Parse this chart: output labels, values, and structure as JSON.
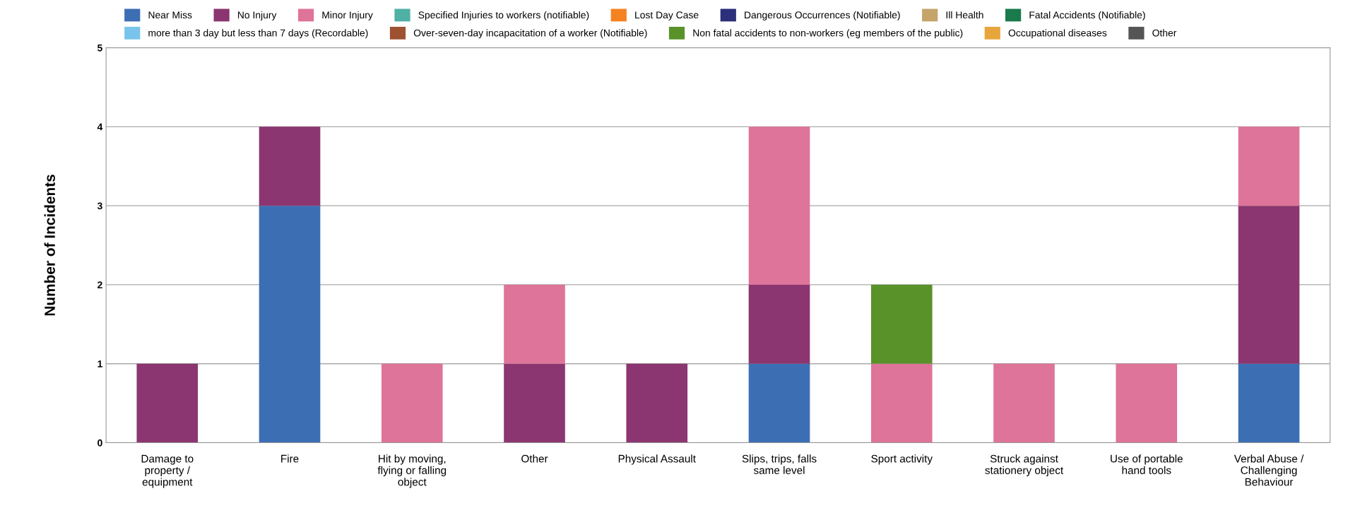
{
  "chart_data": {
    "type": "bar",
    "stacked": true,
    "ylabel": "Number of Incidents",
    "categories": [
      "Damage to property / equipment",
      "Fire",
      "Hit by moving, flying or falling object",
      "Other",
      "Physical Assault",
      "Slips, trips, falls same level",
      "Sport activity",
      "Struck against stationery object",
      "Use of portable hand tools",
      "Verbal Abuse / Challenging Behaviour"
    ],
    "ylim": [
      0,
      5
    ],
    "yticks": [
      0,
      1,
      2,
      3,
      4,
      5
    ],
    "grid": "y",
    "legend": "top",
    "series": [
      {
        "name": "Near Miss",
        "color": "#3c6eb4",
        "values": [
          0,
          3,
          0,
          0,
          0,
          1,
          0,
          0,
          0,
          1
        ]
      },
      {
        "name": "No Injury",
        "color": "#8b3670",
        "values": [
          1,
          1,
          0,
          1,
          1,
          1,
          0,
          0,
          0,
          2
        ]
      },
      {
        "name": "Minor Injury",
        "color": "#de7499",
        "values": [
          0,
          0,
          1,
          1,
          0,
          2,
          1,
          1,
          1,
          1
        ]
      },
      {
        "name": "Specified Injuries to workers (notifiable)",
        "color": "#4fb0a5",
        "values": [
          0,
          0,
          0,
          0,
          0,
          0,
          0,
          0,
          0,
          0
        ]
      },
      {
        "name": "Lost Day Case",
        "color": "#f58220",
        "values": [
          0,
          0,
          0,
          0,
          0,
          0,
          0,
          0,
          0,
          0
        ]
      },
      {
        "name": "Dangerous Occurrences (Notifiable)",
        "color": "#2c2f7a",
        "values": [
          0,
          0,
          0,
          0,
          0,
          0,
          0,
          0,
          0,
          0
        ]
      },
      {
        "name": "Ill Health",
        "color": "#c4a46b",
        "values": [
          0,
          0,
          0,
          0,
          0,
          0,
          0,
          0,
          0,
          0
        ]
      },
      {
        "name": "Fatal Accidents (Notifiable)",
        "color": "#1a7a4c",
        "values": [
          0,
          0,
          0,
          0,
          0,
          0,
          0,
          0,
          0,
          0
        ]
      },
      {
        "name": "more than 3 day but less than 7 days (Recordable)",
        "color": "#79c4ec",
        "values": [
          0,
          0,
          0,
          0,
          0,
          0,
          0,
          0,
          0,
          0
        ]
      },
      {
        "name": "Over-seven-day incapacitation of a worker (Notifiable)",
        "color": "#9e5231",
        "values": [
          0,
          0,
          0,
          0,
          0,
          0,
          0,
          0,
          0,
          0
        ]
      },
      {
        "name": "Non fatal accidents to non-workers (eg members of the public)",
        "color": "#5a922a",
        "values": [
          0,
          0,
          0,
          0,
          0,
          0,
          1,
          0,
          0,
          0
        ]
      },
      {
        "name": "Occupational diseases",
        "color": "#e8a53c",
        "values": [
          0,
          0,
          0,
          0,
          0,
          0,
          0,
          0,
          0,
          0
        ]
      },
      {
        "name": "Other",
        "color": "#555555",
        "values": [
          0,
          0,
          0,
          0,
          0,
          0,
          0,
          0,
          0,
          0
        ]
      }
    ]
  }
}
